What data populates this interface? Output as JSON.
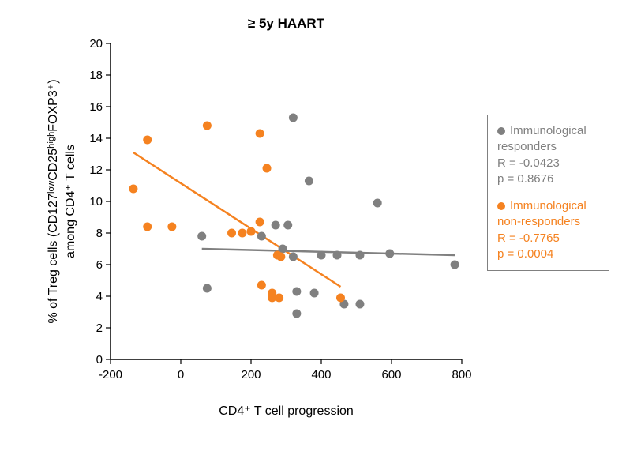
{
  "chart": {
    "type": "scatter",
    "title": "≥ 5y HAART",
    "title_fontsize": 17,
    "title_color": "#000000",
    "xlabel": "CD4⁺ T cell progression",
    "ylabel_line1": "% of Treg cells (CD127ˡᵒʷCD25ʰⁱᵍʰFOXP3⁺)",
    "ylabel_line2": "among CD4⁺ T cells",
    "label_fontsize": 16,
    "label_color": "#000000",
    "tick_fontsize": 15,
    "xlim": [
      -200,
      800
    ],
    "ylim": [
      0,
      20
    ],
    "xticks": [
      -200,
      0,
      200,
      400,
      600,
      800
    ],
    "yticks": [
      0,
      2,
      4,
      6,
      8,
      10,
      12,
      14,
      16,
      18,
      20
    ],
    "background_color": "#ffffff",
    "axis_color": "#000000",
    "marker_radius": 5.5,
    "line_width": 2.5,
    "series": {
      "responders": {
        "color": "#808080",
        "points": [
          [
            60,
            7.8
          ],
          [
            75,
            4.5
          ],
          [
            230,
            7.8
          ],
          [
            270,
            8.5
          ],
          [
            290,
            7.0
          ],
          [
            305,
            8.5
          ],
          [
            320,
            15.3
          ],
          [
            320,
            6.5
          ],
          [
            330,
            4.3
          ],
          [
            330,
            2.9
          ],
          [
            365,
            11.3
          ],
          [
            380,
            4.2
          ],
          [
            400,
            6.6
          ],
          [
            445,
            6.6
          ],
          [
            465,
            3.5
          ],
          [
            510,
            6.6
          ],
          [
            510,
            3.5
          ],
          [
            560,
            9.9
          ],
          [
            595,
            6.7
          ],
          [
            780,
            6.0
          ]
        ],
        "trend": {
          "x1": 60,
          "y1": 7.0,
          "x2": 780,
          "y2": 6.6
        }
      },
      "non_responders": {
        "color": "#f58220",
        "points": [
          [
            -135,
            10.8
          ],
          [
            -95,
            13.9
          ],
          [
            -95,
            8.4
          ],
          [
            -25,
            8.4
          ],
          [
            75,
            14.8
          ],
          [
            145,
            8.0
          ],
          [
            175,
            8.0
          ],
          [
            200,
            8.1
          ],
          [
            225,
            14.3
          ],
          [
            225,
            8.7
          ],
          [
            230,
            4.7
          ],
          [
            245,
            12.1
          ],
          [
            260,
            3.9
          ],
          [
            260,
            4.2
          ],
          [
            275,
            6.6
          ],
          [
            280,
            3.9
          ],
          [
            285,
            6.5
          ],
          [
            455,
            3.9
          ]
        ],
        "trend": {
          "x1": -135,
          "y1": 13.1,
          "x2": 455,
          "y2": 4.6
        }
      }
    }
  },
  "legend": {
    "responders": {
      "label_line1": "Immunological",
      "label_line2": "responders",
      "r_line": "R = -0.0423",
      "p_line": "p = 0.8676",
      "color": "#808080"
    },
    "non_responders": {
      "label_line1": "Immunological",
      "label_line2": "non-responders",
      "r_line": "R = -0.7765",
      "p_line": "p = 0.0004",
      "color": "#f58220"
    }
  }
}
